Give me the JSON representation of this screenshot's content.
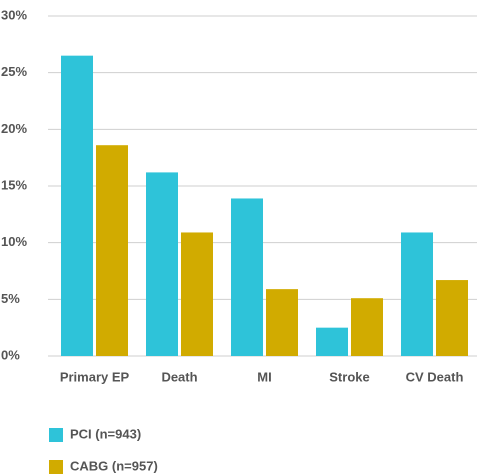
{
  "chart_data": {
    "type": "bar",
    "categories": [
      "Primary EP",
      "Death",
      "MI",
      "Stroke",
      "CV Death"
    ],
    "series": [
      {
        "name": "PCI (n=943)",
        "color": "#2ec3d9",
        "values": [
          26.5,
          16.2,
          13.9,
          2.5,
          10.9
        ]
      },
      {
        "name": "CABG (n=957)",
        "color": "#d1ab00",
        "values": [
          18.6,
          10.9,
          5.9,
          5.1,
          6.7
        ]
      }
    ],
    "ylim": [
      0,
      30
    ],
    "yticks": [
      {
        "value": 0,
        "label": "0%"
      },
      {
        "value": 5,
        "label": "5%"
      },
      {
        "value": 10,
        "label": "10%"
      },
      {
        "value": 15,
        "label": "15%"
      },
      {
        "value": 20,
        "label": "20%"
      },
      {
        "value": 25,
        "label": "25%"
      },
      {
        "value": 30,
        "label": "30%"
      }
    ],
    "grid": true
  }
}
